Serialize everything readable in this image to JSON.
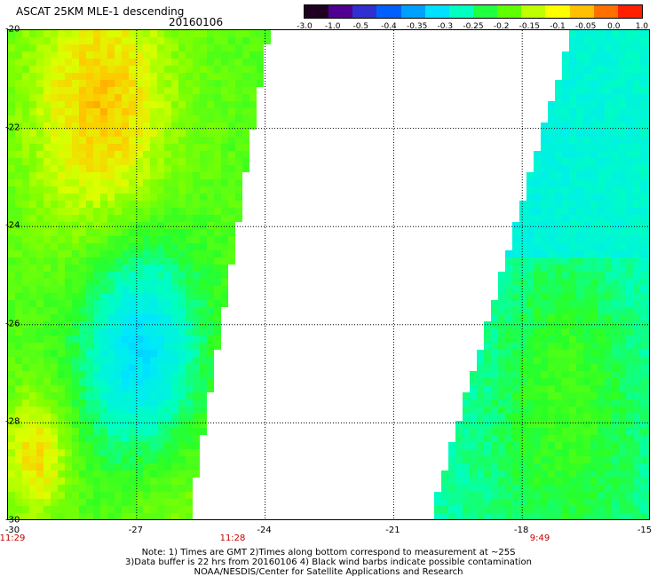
{
  "header": {
    "title": "ASCAT 25KM MLE-1 descending",
    "date": "20160106"
  },
  "colorbar": {
    "labels": [
      "-3.0",
      "-1.0",
      "-0.5",
      "-0.4",
      "-0.35",
      "-0.3",
      "-0.25",
      "-0.2",
      "-0.15",
      "-0.1",
      "-0.05",
      "0.0",
      "1.0"
    ],
    "colors": [
      "#200020",
      "#500090",
      "#3030d0",
      "#0060ff",
      "#00a0ff",
      "#00e0ff",
      "#00ffc0",
      "#20ff40",
      "#60ff00",
      "#c0ff00",
      "#ffff00",
      "#ffc000",
      "#ff7000",
      "#ff2000"
    ]
  },
  "map": {
    "y_ticks": [
      "-20",
      "-22",
      "-24",
      "-26",
      "-28",
      "-30"
    ],
    "x_ticks": [
      "-30",
      "-27",
      "-24",
      "-21",
      "-18",
      "-15"
    ],
    "time_labels": [
      "11:29",
      "11:28",
      "9:49"
    ],
    "lon_range": [
      -30,
      -15
    ],
    "lat_range": [
      -30,
      -20
    ]
  },
  "footer": {
    "line1": "Note: 1) Times are GMT 2)Times along bottom correspond to measurement at ~25S",
    "line2": "3)Data buffer is 22 hrs from 20160106 4) Black wind barbs indicate possible contamination",
    "line3": "NOAA/NESDIS/Center for Satellite Applications and Research"
  }
}
